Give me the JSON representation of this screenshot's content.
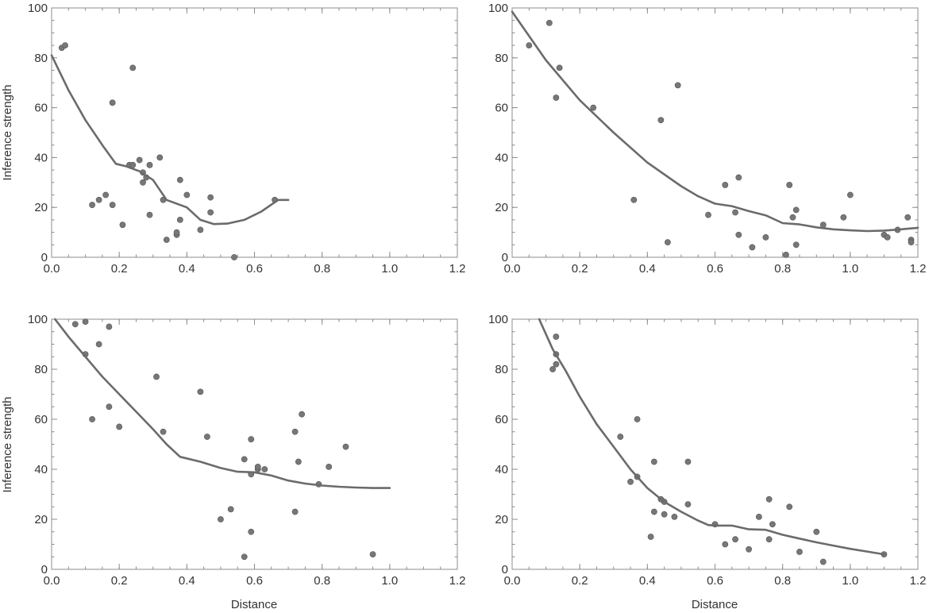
{
  "figure": {
    "y_label": "Inference strength",
    "x_label": "Distance"
  },
  "colors": {
    "points": "#777777",
    "line": "#6b6b6b",
    "axis": "#8c8c8c",
    "text": "#333333"
  },
  "chart_data": [
    {
      "type": "scatter",
      "panel": "top-left",
      "xlabel": "",
      "ylabel": "Inference strength",
      "xlim": [
        0,
        1.2
      ],
      "ylim": [
        0,
        100
      ],
      "xticks": [
        "0.0",
        "0.2",
        "0.4",
        "0.6",
        "0.8",
        "1.0",
        "1.2"
      ],
      "yticks": [
        "0",
        "20",
        "40",
        "60",
        "80",
        "100"
      ],
      "grid": false,
      "points": [
        [
          0.03,
          84
        ],
        [
          0.04,
          85
        ],
        [
          0.12,
          21
        ],
        [
          0.14,
          23
        ],
        [
          0.16,
          25
        ],
        [
          0.18,
          62
        ],
        [
          0.18,
          21
        ],
        [
          0.21,
          13
        ],
        [
          0.23,
          37
        ],
        [
          0.24,
          37
        ],
        [
          0.24,
          76
        ],
        [
          0.26,
          39
        ],
        [
          0.27,
          30
        ],
        [
          0.27,
          34
        ],
        [
          0.28,
          32
        ],
        [
          0.29,
          37
        ],
        [
          0.29,
          17
        ],
        [
          0.32,
          40
        ],
        [
          0.33,
          23
        ],
        [
          0.34,
          7
        ],
        [
          0.37,
          9
        ],
        [
          0.37,
          10
        ],
        [
          0.38,
          15
        ],
        [
          0.38,
          31
        ],
        [
          0.4,
          25
        ],
        [
          0.44,
          11
        ],
        [
          0.47,
          24
        ],
        [
          0.47,
          18
        ],
        [
          0.54,
          0
        ],
        [
          0.66,
          23
        ]
      ],
      "trend_line": [
        [
          0.0,
          81
        ],
        [
          0.05,
          67
        ],
        [
          0.1,
          55
        ],
        [
          0.15,
          45
        ],
        [
          0.19,
          37.5
        ],
        [
          0.22,
          36.5
        ],
        [
          0.26,
          34.5
        ],
        [
          0.3,
          31
        ],
        [
          0.34,
          23
        ],
        [
          0.4,
          20
        ],
        [
          0.44,
          15
        ],
        [
          0.48,
          13.3
        ],
        [
          0.52,
          13.5
        ],
        [
          0.57,
          15
        ],
        [
          0.62,
          18.3
        ],
        [
          0.67,
          23
        ],
        [
          0.7,
          23
        ]
      ]
    },
    {
      "type": "scatter",
      "panel": "top-right",
      "xlabel": "",
      "ylabel": "",
      "xlim": [
        0,
        1.2
      ],
      "ylim": [
        0,
        100
      ],
      "xticks": [
        "0.0",
        "0.2",
        "0.4",
        "0.6",
        "0.8",
        "1.0",
        "1.2"
      ],
      "yticks": [
        "0",
        "20",
        "40",
        "60",
        "80",
        "100"
      ],
      "grid": false,
      "points": [
        [
          0.05,
          85
        ],
        [
          0.11,
          94
        ],
        [
          0.13,
          64
        ],
        [
          0.14,
          76
        ],
        [
          0.24,
          60
        ],
        [
          0.36,
          23
        ],
        [
          0.44,
          55
        ],
        [
          0.46,
          6
        ],
        [
          0.49,
          69
        ],
        [
          0.58,
          17
        ],
        [
          0.63,
          29
        ],
        [
          0.66,
          18
        ],
        [
          0.67,
          9
        ],
        [
          0.67,
          32
        ],
        [
          0.71,
          4
        ],
        [
          0.75,
          8
        ],
        [
          0.81,
          1
        ],
        [
          0.82,
          29
        ],
        [
          0.83,
          16
        ],
        [
          0.84,
          19
        ],
        [
          0.84,
          5
        ],
        [
          0.92,
          13
        ],
        [
          0.98,
          16
        ],
        [
          1.0,
          25
        ],
        [
          1.1,
          9
        ],
        [
          1.11,
          8
        ],
        [
          1.14,
          11
        ],
        [
          1.17,
          16
        ],
        [
          1.18,
          7
        ],
        [
          1.18,
          6
        ]
      ],
      "trend_line": [
        [
          0.0,
          98.5
        ],
        [
          0.1,
          79
        ],
        [
          0.2,
          63
        ],
        [
          0.3,
          50
        ],
        [
          0.4,
          38
        ],
        [
          0.5,
          28.5
        ],
        [
          0.55,
          24.5
        ],
        [
          0.6,
          21.5
        ],
        [
          0.65,
          20.5
        ],
        [
          0.7,
          18.5
        ],
        [
          0.75,
          16.8
        ],
        [
          0.8,
          13.7
        ],
        [
          0.85,
          13.2
        ],
        [
          0.9,
          12
        ],
        [
          0.95,
          11.2
        ],
        [
          1.0,
          10.8
        ],
        [
          1.05,
          10.5
        ],
        [
          1.1,
          10.7
        ],
        [
          1.15,
          11.2
        ],
        [
          1.2,
          11.8
        ]
      ]
    },
    {
      "type": "scatter",
      "panel": "bottom-left",
      "xlabel": "Distance",
      "ylabel": "Inference strength",
      "xlim": [
        0,
        1.2
      ],
      "ylim": [
        0,
        100
      ],
      "xticks": [
        "0.0",
        "0.2",
        "0.4",
        "0.6",
        "0.8",
        "1.0",
        "1.2"
      ],
      "yticks": [
        "0",
        "20",
        "40",
        "60",
        "80",
        "100"
      ],
      "grid": false,
      "points": [
        [
          0.07,
          98
        ],
        [
          0.1,
          99
        ],
        [
          0.1,
          86
        ],
        [
          0.12,
          60
        ],
        [
          0.14,
          90
        ],
        [
          0.17,
          97
        ],
        [
          0.17,
          65
        ],
        [
          0.2,
          57
        ],
        [
          0.31,
          77
        ],
        [
          0.33,
          55
        ],
        [
          0.44,
          71
        ],
        [
          0.46,
          53
        ],
        [
          0.5,
          20
        ],
        [
          0.53,
          24
        ],
        [
          0.57,
          44
        ],
        [
          0.57,
          5
        ],
        [
          0.59,
          52
        ],
        [
          0.59,
          38
        ],
        [
          0.59,
          15
        ],
        [
          0.61,
          40
        ],
        [
          0.61,
          41
        ],
        [
          0.63,
          40
        ],
        [
          0.72,
          55
        ],
        [
          0.72,
          23
        ],
        [
          0.73,
          43
        ],
        [
          0.74,
          62
        ],
        [
          0.79,
          34
        ],
        [
          0.82,
          41
        ],
        [
          0.87,
          49
        ],
        [
          0.95,
          6
        ]
      ],
      "trend_line": [
        [
          0.01,
          100
        ],
        [
          0.05,
          93
        ],
        [
          0.1,
          85
        ],
        [
          0.15,
          77
        ],
        [
          0.2,
          70
        ],
        [
          0.25,
          63
        ],
        [
          0.3,
          56
        ],
        [
          0.34,
          50
        ],
        [
          0.38,
          45
        ],
        [
          0.44,
          43
        ],
        [
          0.5,
          40.5
        ],
        [
          0.55,
          39
        ],
        [
          0.6,
          38.8
        ],
        [
          0.65,
          37.5
        ],
        [
          0.7,
          35.5
        ],
        [
          0.75,
          34.3
        ],
        [
          0.8,
          33.5
        ],
        [
          0.85,
          33
        ],
        [
          0.9,
          32.7
        ],
        [
          0.95,
          32.5
        ],
        [
          1.0,
          32.5
        ]
      ]
    },
    {
      "type": "scatter",
      "panel": "bottom-right",
      "xlabel": "Distance",
      "ylabel": "",
      "xlim": [
        0,
        1.2
      ],
      "ylim": [
        0,
        100
      ],
      "xticks": [
        "0.0",
        "0.2",
        "0.4",
        "0.6",
        "0.8",
        "1.0",
        "1.2"
      ],
      "yticks": [
        "0",
        "20",
        "40",
        "60",
        "80",
        "100"
      ],
      "grid": false,
      "points": [
        [
          0.12,
          80
        ],
        [
          0.13,
          86
        ],
        [
          0.13,
          93
        ],
        [
          0.13,
          82
        ],
        [
          0.32,
          53
        ],
        [
          0.35,
          35
        ],
        [
          0.37,
          60
        ],
        [
          0.37,
          37
        ],
        [
          0.41,
          13
        ],
        [
          0.42,
          43
        ],
        [
          0.42,
          23
        ],
        [
          0.44,
          28
        ],
        [
          0.45,
          27
        ],
        [
          0.45,
          22
        ],
        [
          0.48,
          21
        ],
        [
          0.52,
          43
        ],
        [
          0.52,
          26
        ],
        [
          0.6,
          18
        ],
        [
          0.63,
          10
        ],
        [
          0.66,
          12
        ],
        [
          0.7,
          8
        ],
        [
          0.73,
          21
        ],
        [
          0.76,
          28
        ],
        [
          0.76,
          12
        ],
        [
          0.77,
          18
        ],
        [
          0.82,
          25
        ],
        [
          0.85,
          7
        ],
        [
          0.9,
          15
        ],
        [
          0.92,
          3
        ],
        [
          1.1,
          6
        ]
      ],
      "trend_line": [
        [
          0.08,
          100
        ],
        [
          0.12,
          88
        ],
        [
          0.16,
          79
        ],
        [
          0.2,
          69
        ],
        [
          0.25,
          58
        ],
        [
          0.3,
          49
        ],
        [
          0.35,
          40
        ],
        [
          0.4,
          32.5
        ],
        [
          0.45,
          27
        ],
        [
          0.5,
          23
        ],
        [
          0.55,
          19.5
        ],
        [
          0.58,
          17.7
        ],
        [
          0.6,
          17.5
        ],
        [
          0.65,
          17.5
        ],
        [
          0.7,
          16
        ],
        [
          0.75,
          15.8
        ],
        [
          0.8,
          13.8
        ],
        [
          0.85,
          12.3
        ],
        [
          0.9,
          10.8
        ],
        [
          0.95,
          9.5
        ],
        [
          1.0,
          8.2
        ],
        [
          1.05,
          7.1
        ],
        [
          1.1,
          6
        ]
      ]
    }
  ]
}
